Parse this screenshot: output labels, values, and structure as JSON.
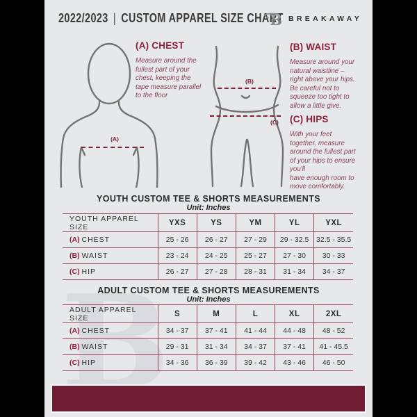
{
  "header": {
    "season": "2022/2023",
    "divider": "|",
    "title": "CUSTOM APPAREL SIZE CHART",
    "brand": "BREAKAWAY",
    "logo_letter": "B"
  },
  "guide": {
    "chest": {
      "heading": "(A) CHEST",
      "body": "Measure around the\nfullest part of your\nchest, keeping the\ntape measure parallel\nto the floor"
    },
    "waist": {
      "heading": "(B) WAIST",
      "body": "Measure around your\nnatural waistline –\nright above your hips.\nBe careful not to\nsqueeze too tight to\nallow a little give."
    },
    "hips": {
      "heading": "(C) HIPS",
      "body": "With your feet\ntogether, measure\naround the fullest part\nof your hips to ensure\nyou'll\nhave enough room to\nmove comfortably."
    },
    "marker_a": "(A)",
    "marker_b": "(B)",
    "marker_c": "(C)"
  },
  "youth_table": {
    "title": "YOUTH CUSTOM TEE & SHORTS MEASUREMENTS",
    "unit": "Unit: Inches",
    "header": [
      "YOUTH APPAREL SIZE",
      "YXS",
      "YS",
      "YM",
      "YL",
      "YXL"
    ],
    "rows": [
      {
        "key": "(A)",
        "label": "CHEST",
        "values": [
          "25 - 26",
          "26 - 27",
          "27 - 29",
          "29 - 32.5",
          "32.5 - 35.5"
        ]
      },
      {
        "key": "(B)",
        "label": "WAIST",
        "values": [
          "23 - 24",
          "24 - 25",
          "25 - 27",
          "27 - 30",
          "30 - 33"
        ]
      },
      {
        "key": "(C)",
        "label": "HIP",
        "values": [
          "26 - 27",
          "27 - 28",
          "28 - 31",
          "31 - 34",
          "34 - 37"
        ]
      }
    ]
  },
  "adult_table": {
    "title": "ADULT CUSTOM TEE & SHORTS MEASUREMENTS",
    "unit": "Unit: Inches",
    "header": [
      "ADULT APPAREL SIZE",
      "S",
      "M",
      "L",
      "XL",
      "2XL"
    ],
    "rows": [
      {
        "key": "(A)",
        "label": "CHEST",
        "values": [
          "34 - 37",
          "37 - 41",
          "41 - 44",
          "44 - 48",
          "48 - 52"
        ]
      },
      {
        "key": "(B)",
        "label": "WAIST",
        "values": [
          "29 - 31",
          "31 - 34",
          "34 - 37",
          "37 - 41",
          "41 - 45.5"
        ]
      },
      {
        "key": "(C)",
        "label": "HIP",
        "values": [
          "34 - 36",
          "36 - 39",
          "39 - 42",
          "43 - 46",
          "46 - 50"
        ]
      }
    ]
  },
  "watermark_letter": "B",
  "colors": {
    "maroon_dark": "#701d33",
    "maroon_heading": "#8e1f38",
    "plum_text": "#8a4158",
    "table_border": "#96455a",
    "page_bg": "#e7e8e9",
    "figure_gray": "#727272"
  }
}
